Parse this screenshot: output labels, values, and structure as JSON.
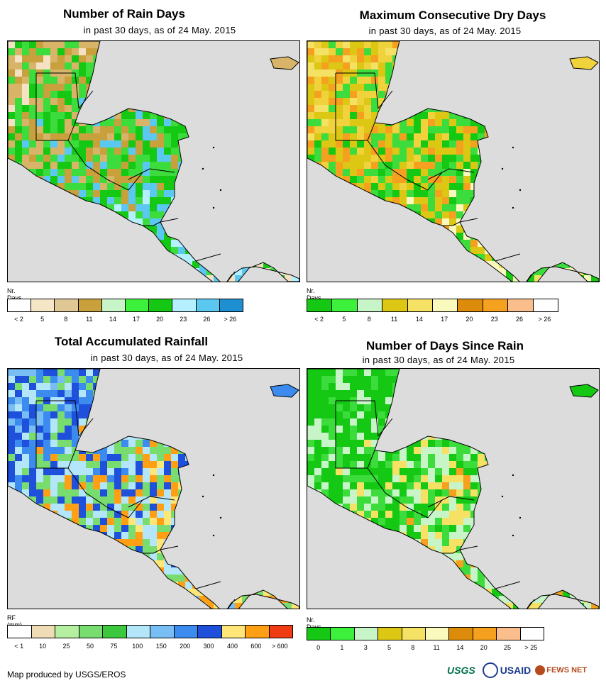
{
  "panels": [
    {
      "title": "Number of Rain Days",
      "subtitle": "in past 30 days, as of 24 May. 2015",
      "unit": "Nr. Days",
      "legend_colors": [
        "#ffffff",
        "#f5e6c8",
        "#e0c896",
        "#c8a03c",
        "#c8f5c8",
        "#3cf03c",
        "#14c814",
        "#b4f0ff",
        "#5ac8f0",
        "#1e90d2"
      ],
      "legend_labels": [
        "< 2",
        "5",
        "8",
        "11",
        "14",
        "17",
        "20",
        "23",
        "26",
        "> 26"
      ],
      "map_palette": [
        "#f5e1c3",
        "#d8b468",
        "#c8a03c",
        "#3cdc3c",
        "#14c814",
        "#5ac8f0",
        "#b4f0ff"
      ]
    },
    {
      "title": "Maximum Consecutive Dry Days",
      "subtitle": "in past 30 days, as of 24 May. 2015",
      "unit": "Nr. Days",
      "legend_colors": [
        "#14c814",
        "#3cf03c",
        "#c8f5c8",
        "#dcc814",
        "#f5e164",
        "#fafabe",
        "#dc8c0a",
        "#f5a01e",
        "#fabe8c",
        "#ffffff"
      ],
      "legend_labels": [
        "< 2",
        "5",
        "8",
        "11",
        "14",
        "17",
        "20",
        "23",
        "26",
        "> 26"
      ],
      "map_palette": [
        "#f5e164",
        "#f0d23c",
        "#f5a01e",
        "#dcc814",
        "#3cdc3c",
        "#14c814",
        "#fafabe"
      ]
    },
    {
      "title": "Total Accumulated Rainfall",
      "subtitle": "in past 30 days, as of 24 May. 2015",
      "unit": "RF (mm)",
      "legend_colors": [
        "#ffffff",
        "#f0dcb4",
        "#b4f0a0",
        "#78dc6e",
        "#3cc83c",
        "#b4e6fa",
        "#78bef5",
        "#3c8cf0",
        "#1e50dc",
        "#ffe678",
        "#ffa014",
        "#f03c14"
      ],
      "legend_labels": [
        "< 1",
        "10",
        "25",
        "50",
        "75",
        "100",
        "150",
        "200",
        "300",
        "400",
        "600",
        "> 600"
      ],
      "map_palette": [
        "#78bef5",
        "#3c8cf0",
        "#1e50dc",
        "#b4e6fa",
        "#78dc6e",
        "#ffa014",
        "#ffe678"
      ]
    },
    {
      "title": "Number of Days Since Rain",
      "subtitle": "in past 30 days, as of 24 May. 2015",
      "unit": "Nr. Days",
      "legend_colors": [
        "#14c814",
        "#3cf03c",
        "#c8f5c8",
        "#dcc814",
        "#f5e164",
        "#fafabe",
        "#dc8c0a",
        "#f5a01e",
        "#fabe8c",
        "#ffffff"
      ],
      "legend_labels": [
        "0",
        "1",
        "3",
        "5",
        "8",
        "11",
        "14",
        "20",
        "25",
        "> 25"
      ],
      "map_palette": [
        "#14c814",
        "#14c814",
        "#14c814",
        "#3cdc3c",
        "#c8f5c8",
        "#f5e164",
        "#f5a01e"
      ]
    }
  ],
  "footer": {
    "credit": "Map produced by USGS/EROS",
    "logos": [
      "USGS",
      "USAID",
      "FEWS NET"
    ]
  }
}
